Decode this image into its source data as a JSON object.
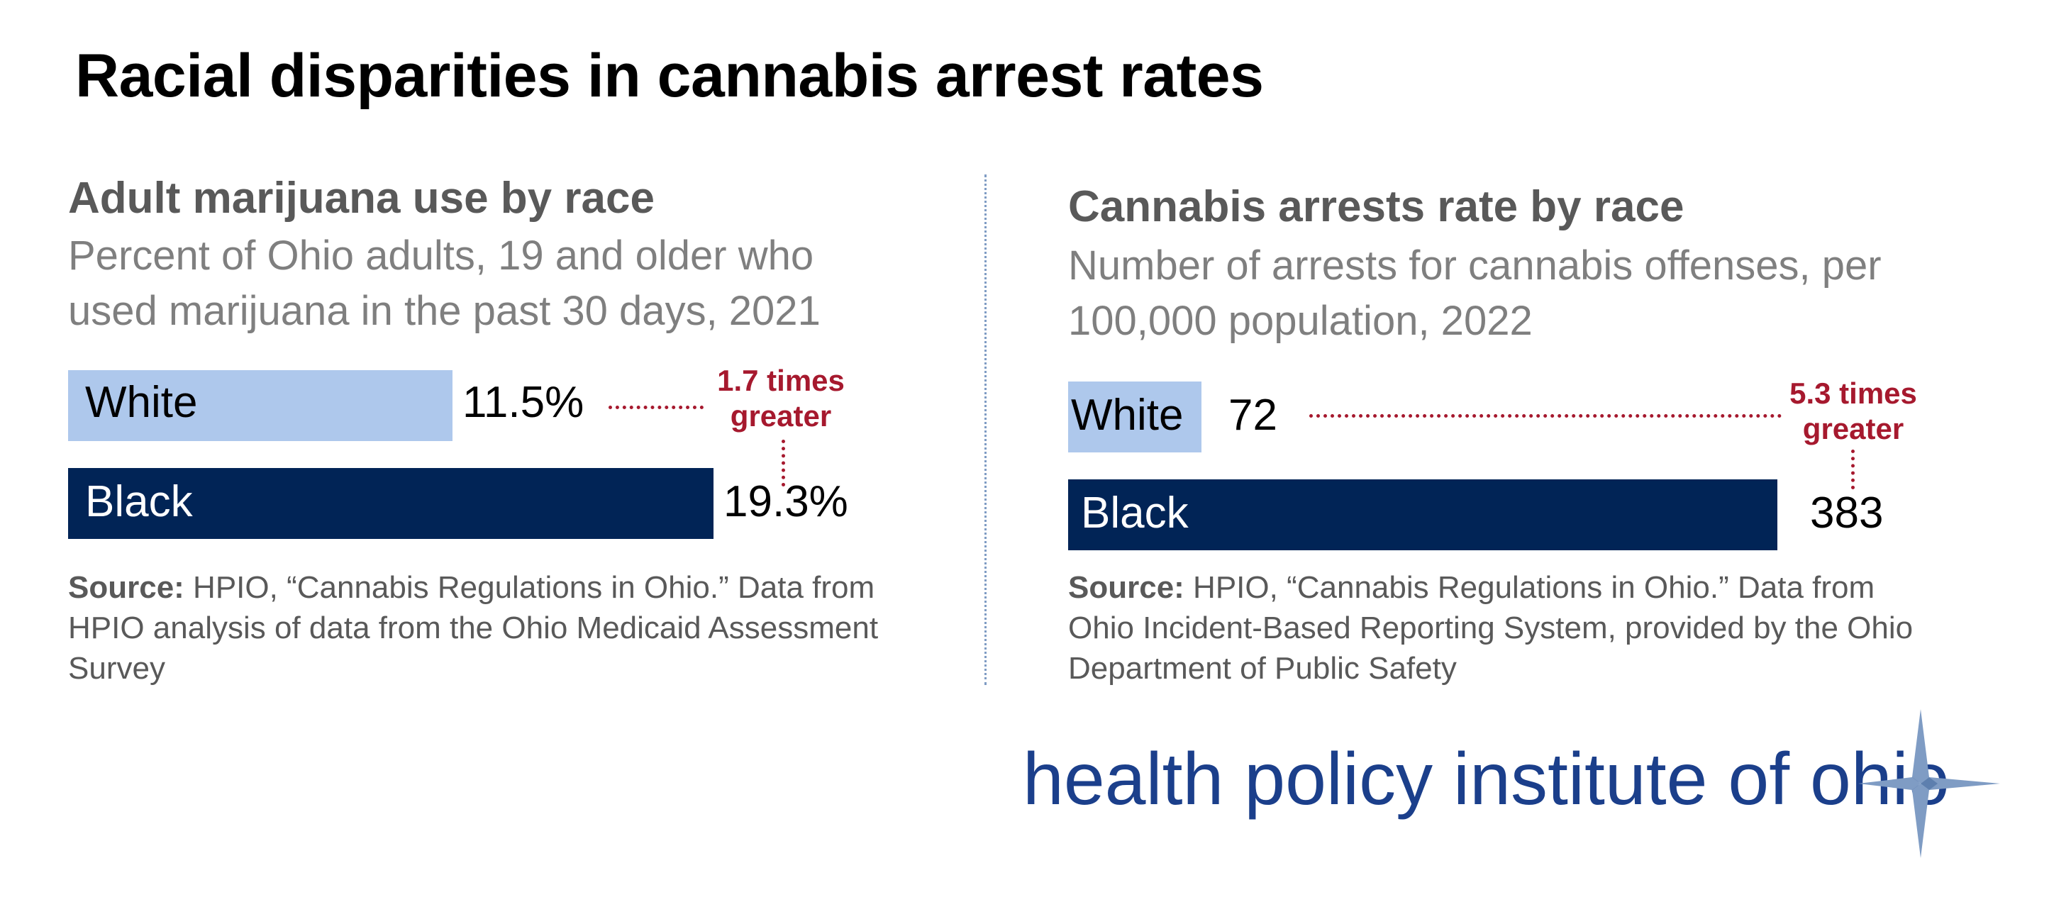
{
  "title": "Racial disparities in cannabis arrest rates",
  "colors": {
    "white_bar": "#aec8ec",
    "black_bar": "#012456",
    "annotation": "#a6192e",
    "logo": "#1b3f8b"
  },
  "chart_data": [
    {
      "type": "bar",
      "title": "Adult marijuana use by race",
      "subtitle_lines": [
        "Percent of Ohio adults, 19 and older who",
        "used marijuana in the past 30 days, 2021"
      ],
      "categories": [
        "White",
        "Black"
      ],
      "values": [
        11.5,
        19.3
      ],
      "value_labels": [
        "11.5%",
        "19.3%"
      ],
      "annotation": [
        "1.7 times",
        "greater"
      ],
      "source_bold": "Source:",
      "source_lines": [
        " HPIO, “Cannabis Regulations in Ohio.” Data from",
        "HPIO analysis of data from the Ohio Medicaid Assessment",
        "Survey"
      ]
    },
    {
      "type": "bar",
      "title": "Cannabis arrests rate by race",
      "subtitle_lines": [
        "Number of arrests for cannabis offenses, per",
        "100,000 population, 2022"
      ],
      "categories": [
        "White",
        "Black"
      ],
      "values": [
        72,
        383
      ],
      "value_labels": [
        "72",
        "383"
      ],
      "annotation": [
        "5.3 times",
        "greater"
      ],
      "source_bold": "Source:",
      "source_lines": [
        " HPIO, “Cannabis Regulations in Ohio.” Data from",
        "Ohio Incident-Based Reporting System, provided by the Ohio",
        "Department of Public Safety"
      ]
    }
  ],
  "logo": {
    "text": "health policy institute of ohio"
  }
}
